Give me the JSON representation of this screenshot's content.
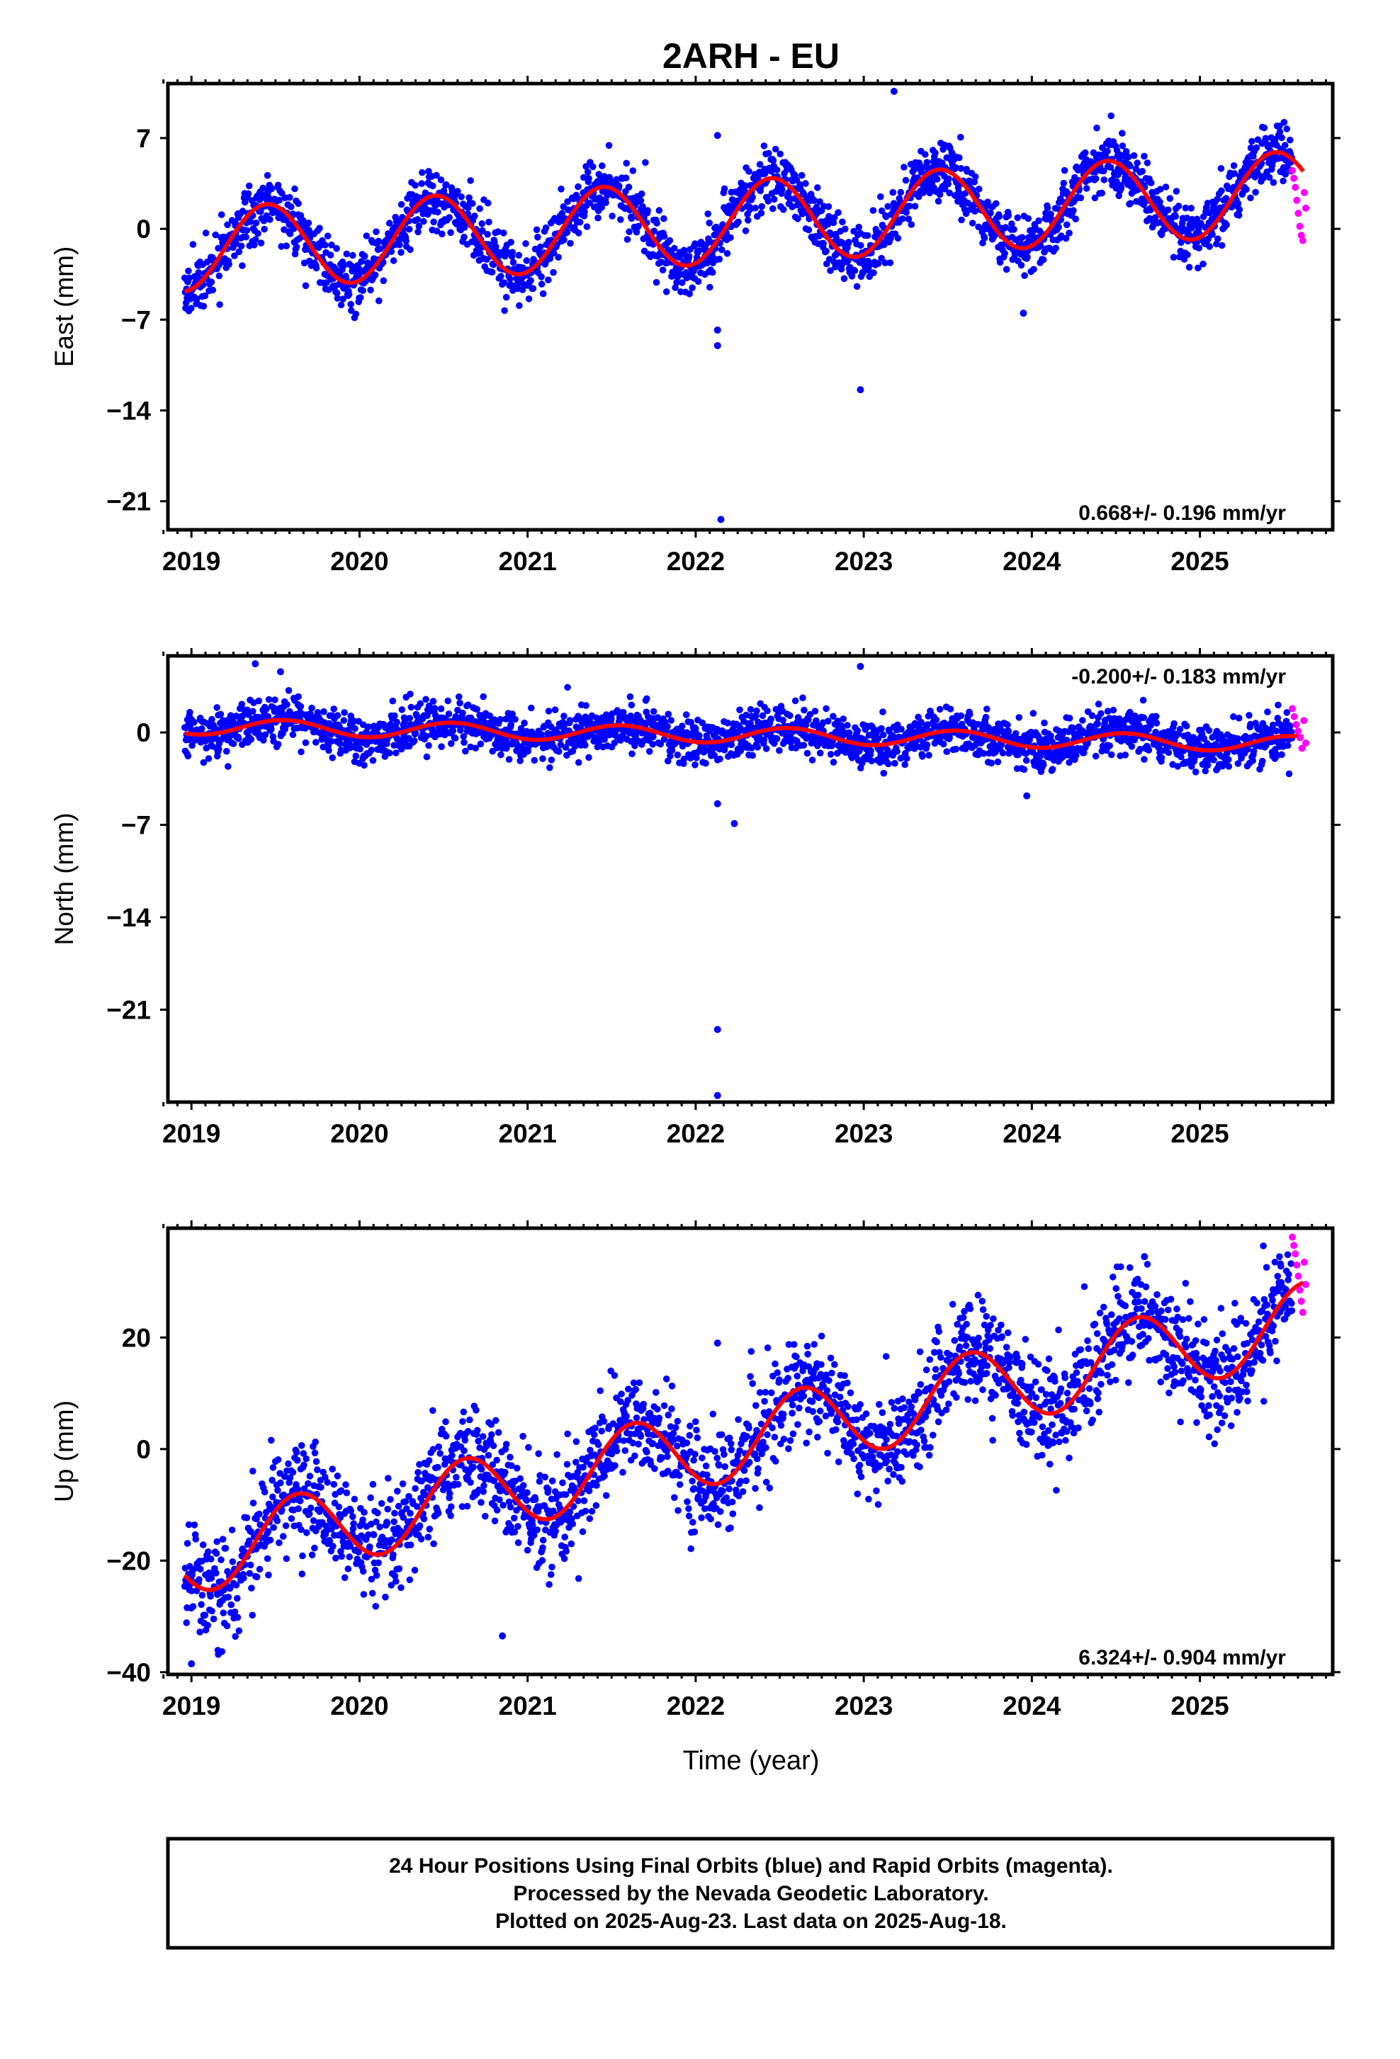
{
  "title": "2ARH - EU",
  "xlabel": "Time (year)",
  "note_lines": [
    "24 Hour Positions Using Final Orbits (blue) and Rapid Orbits (magenta).",
    "Processed by the Nevada Geodetic Laboratory.",
    "Plotted on 2025-Aug-23. Last data on 2025-Aug-18."
  ],
  "colors": {
    "final": "#0000ff",
    "rapid": "#ff00ff",
    "model": "#ff0000",
    "axes": "#000000"
  },
  "chart_data": [
    {
      "type": "scatter",
      "component": "east",
      "ylabel": "East (mm)",
      "rate": "0.668+/- 0.196 mm/yr",
      "rate_position": "bottom-right",
      "xlim": [
        2018.86,
        2025.79
      ],
      "ylim": [
        -23.2,
        11.2
      ],
      "yticks": [
        -21,
        -14,
        -7,
        0,
        7
      ],
      "xticks": [
        2019,
        2020,
        2021,
        2022,
        2023,
        2024,
        2025
      ],
      "model": {
        "intercept_at_2019": -1.6,
        "rate": 0.668,
        "annual_amplitude": 3.2,
        "annual_peak": 0.45
      },
      "scatter_sigma": 1.15,
      "outliers": [
        [
          2022.13,
          -9.0
        ],
        [
          2022.13,
          -7.8
        ],
        [
          2022.15,
          -22.4
        ],
        [
          2022.98,
          -12.4
        ],
        [
          2023.18,
          10.6
        ],
        [
          2022.13,
          7.2
        ],
        [
          2023.95,
          -6.5
        ]
      ],
      "rapid": {
        "start": 2025.55,
        "end": 2025.63,
        "values": [
          4.5,
          3.9,
          3.2,
          2.2,
          1.2,
          0.2,
          -0.5,
          -0.9,
          2.8,
          1.6
        ]
      }
    },
    {
      "type": "scatter",
      "component": "north",
      "ylabel": "North (mm)",
      "rate": "-0.200+/- 0.183 mm/yr",
      "rate_position": "top-right",
      "xlim": [
        2018.86,
        2025.79
      ],
      "ylim": [
        -28.0,
        5.8
      ],
      "yticks": [
        -21,
        -14,
        -7,
        0
      ],
      "xticks": [
        2019,
        2020,
        2021,
        2022,
        2023,
        2024,
        2025
      ],
      "model": {
        "intercept_at_2019": 0.45,
        "rate": -0.2,
        "annual_amplitude": 0.6,
        "annual_peak": 0.55
      },
      "scatter_sigma": 0.85,
      "outliers": [
        [
          2022.13,
          -22.5
        ],
        [
          2022.13,
          -27.5
        ],
        [
          2022.13,
          -5.4
        ],
        [
          2022.23,
          -6.9
        ],
        [
          2022.98,
          5.0
        ],
        [
          2019.38,
          5.2
        ],
        [
          2023.97,
          -4.8
        ],
        [
          2019.53,
          4.6
        ]
      ],
      "rapid": {
        "start": 2025.55,
        "end": 2025.63,
        "values": [
          1.8,
          1.2,
          0.6,
          0.1,
          -0.4,
          -1.2,
          0.9,
          -0.8
        ]
      }
    },
    {
      "type": "scatter",
      "component": "up",
      "ylabel": "Up (mm)",
      "rate": "6.324+/- 0.904 mm/yr",
      "rate_position": "bottom-right",
      "xlim": [
        2018.86,
        2025.79
      ],
      "ylim": [
        -40.4,
        39.6
      ],
      "yticks": [
        -40,
        -20,
        0,
        20
      ],
      "xticks": [
        2019,
        2020,
        2021,
        2022,
        2023,
        2024,
        2025
      ],
      "model": {
        "intercept_at_2019": -19.0,
        "rate": 6.324,
        "annual_amplitude": 7.0,
        "annual_peak": 0.63
      },
      "scatter_sigma": 4.6,
      "outliers": [
        [
          2019.0,
          -38.5
        ],
        [
          2020.85,
          -33.5
        ],
        [
          2022.13,
          19.0
        ],
        [
          2019.63,
          -2.0
        ],
        [
          2024.67,
          34.5
        ]
      ],
      "rapid": {
        "start": 2025.55,
        "end": 2025.63,
        "values": [
          38.0,
          36.5,
          35.0,
          33.0,
          31.0,
          28.5,
          26.5,
          24.5,
          33.5,
          29.5
        ]
      }
    }
  ]
}
